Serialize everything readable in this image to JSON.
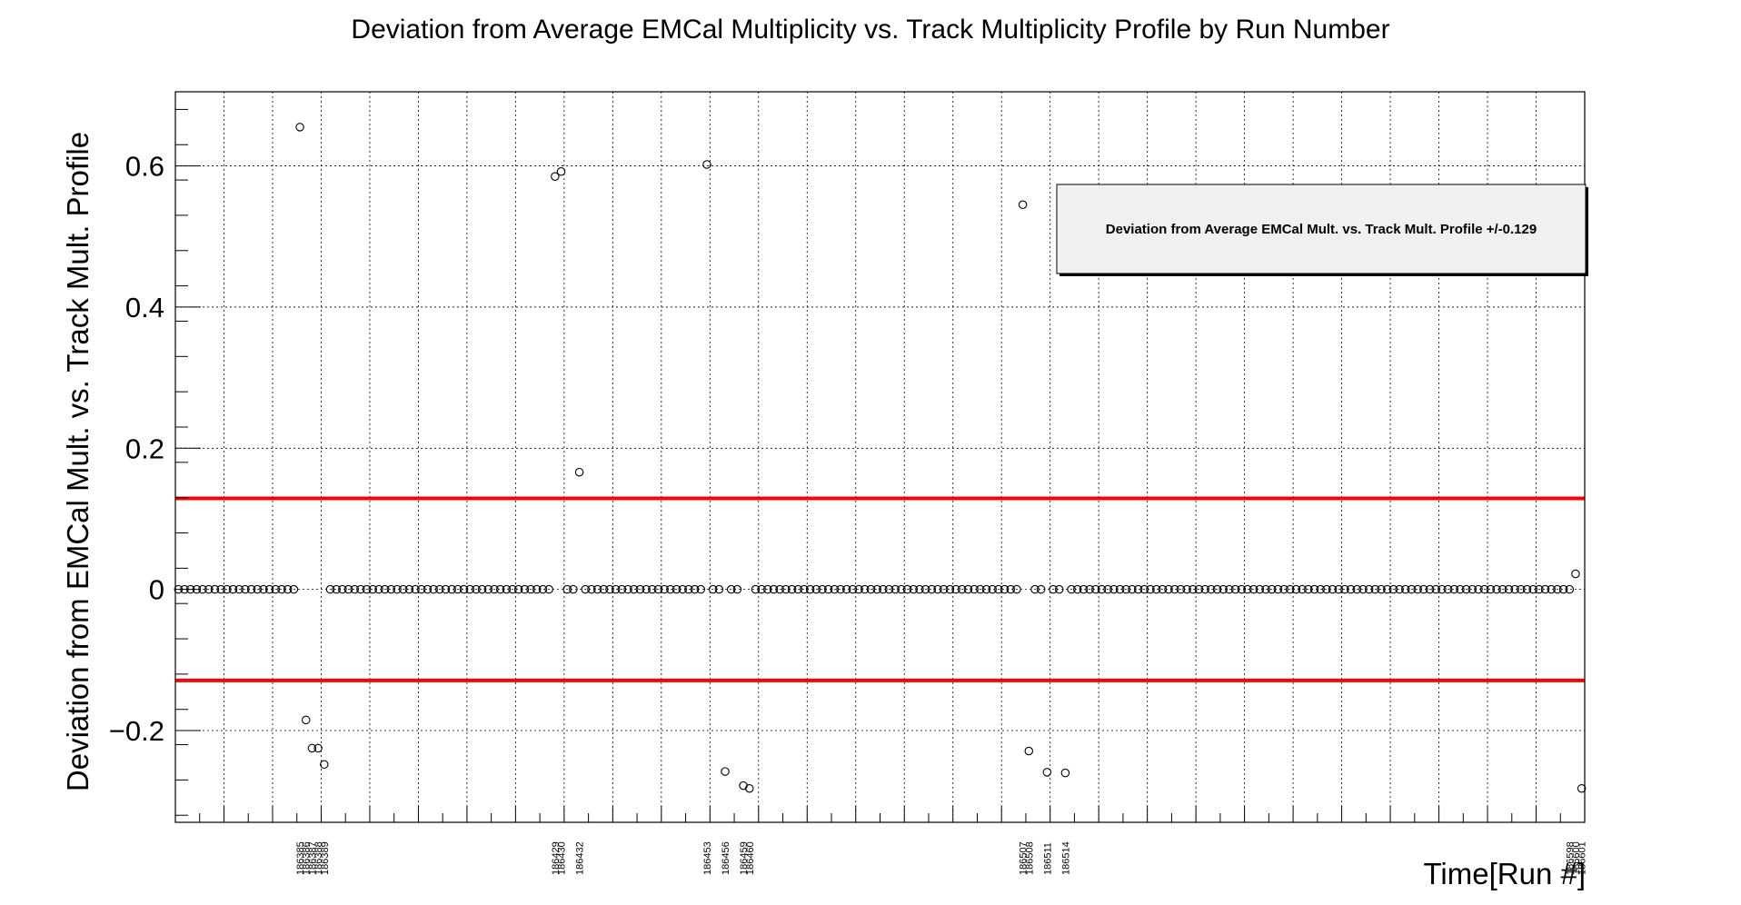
{
  "chart_data": {
    "type": "scatter",
    "title": "Deviation from Average EMCal Multiplicity vs. Track Multiplicity Profile by Run Number",
    "xlabel": "Time[Run #]",
    "ylabel": "Deviation from EMCal Mult. vs. Track Mult. Profile",
    "ylim": [
      -0.33,
      0.705
    ],
    "y_ticks": [
      -0.2,
      0,
      0.2,
      0.4,
      0.6
    ],
    "y_tick_labels": [
      "−0.2",
      "0",
      "0.2",
      "0.4",
      "0.6"
    ],
    "grid": true,
    "legend": {
      "text": "Deviation from Average EMCal Mult. vs. Track Mult. Profile +/-0.129",
      "placement": "top-right"
    },
    "threshold": 0.129,
    "threshold_color": "#ff0000",
    "n_runs": 232,
    "run_labels": [
      "186385",
      "186386",
      "186387",
      "186388",
      "186389",
      "186429",
      "186430",
      "186432",
      "186453",
      "186456",
      "186459",
      "186460",
      "186507",
      "186508",
      "186511",
      "186514",
      "186598",
      "186600",
      "186601"
    ],
    "outliers": [
      {
        "index": 20,
        "run": "186385",
        "y": 0.655
      },
      {
        "index": 21,
        "run": "186386",
        "y": -0.185
      },
      {
        "index": 22,
        "run": "186387",
        "y": -0.225
      },
      {
        "index": 23,
        "run": "186388",
        "y": -0.225
      },
      {
        "index": 24,
        "run": "186389",
        "y": -0.248
      },
      {
        "index": 62,
        "run": "186429",
        "y": 0.585
      },
      {
        "index": 63,
        "run": "186430",
        "y": 0.592
      },
      {
        "index": 66,
        "run": "186432",
        "y": 0.166
      },
      {
        "index": 87,
        "run": "186453",
        "y": 0.602
      },
      {
        "index": 90,
        "run": "186456",
        "y": -0.258
      },
      {
        "index": 93,
        "run": "186459",
        "y": -0.278
      },
      {
        "index": 94,
        "run": "186460",
        "y": -0.282
      },
      {
        "index": 139,
        "run": "186507",
        "y": 0.545
      },
      {
        "index": 140,
        "run": "186508",
        "y": -0.229
      },
      {
        "index": 143,
        "run": "186511",
        "y": -0.259
      },
      {
        "index": 146,
        "run": "186514",
        "y": -0.26
      },
      {
        "index": 229,
        "run": "186598",
        "y": 0.0
      },
      {
        "index": 230,
        "run": "186600",
        "y": 0.022
      },
      {
        "index": 231,
        "run": "186601",
        "y": -0.282
      }
    ]
  }
}
